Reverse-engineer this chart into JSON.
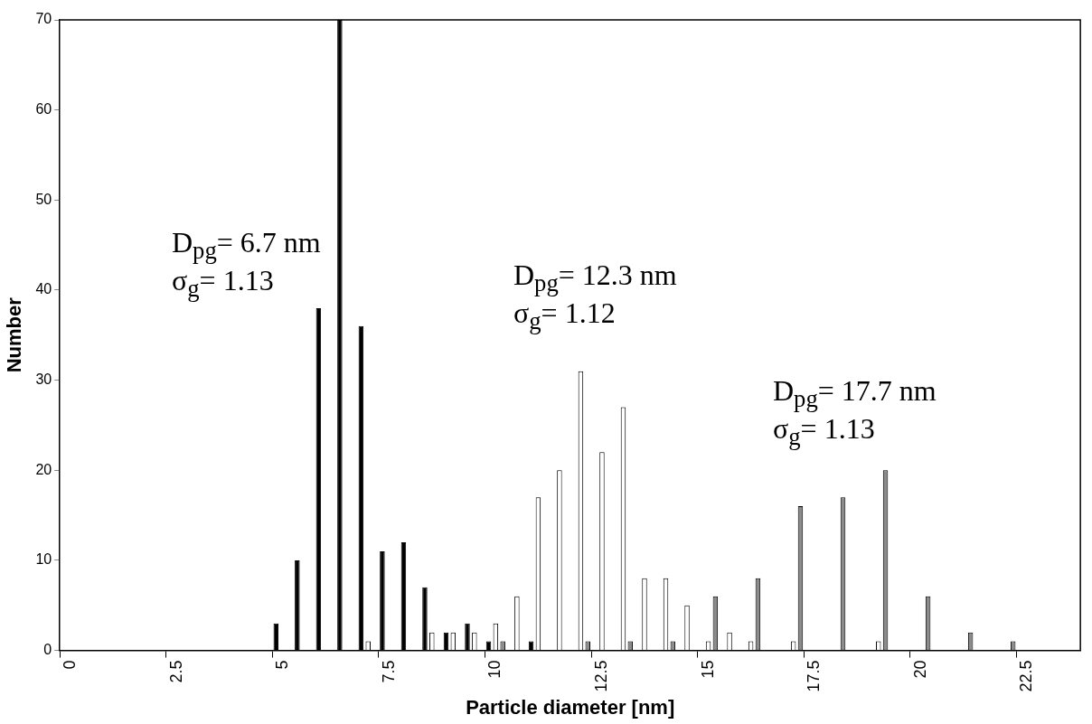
{
  "chart_data": {
    "type": "bar",
    "xlabel": "Particle diameter [nm]",
    "ylabel": "Number",
    "categories": [
      "0",
      null,
      null,
      null,
      null,
      "2.5",
      null,
      null,
      null,
      null,
      "5",
      null,
      null,
      null,
      null,
      "7.5",
      null,
      null,
      null,
      null,
      "10",
      null,
      null,
      null,
      null,
      "12.5",
      null,
      null,
      null,
      null,
      "15",
      null,
      null,
      null,
      null,
      "17.5",
      null,
      null,
      null,
      null,
      "20",
      null,
      null,
      null,
      null,
      "22.5",
      null,
      null
    ],
    "series": [
      {
        "color": "#000000",
        "values": [
          null,
          null,
          null,
          null,
          null,
          null,
          null,
          null,
          null,
          null,
          3,
          10,
          38,
          70,
          36,
          11,
          12,
          7,
          2,
          3,
          1,
          null,
          1,
          null,
          null,
          null,
          null,
          null,
          null,
          null,
          null,
          null,
          null,
          null,
          null,
          null,
          null,
          null,
          null,
          null,
          null,
          null,
          null,
          null,
          null,
          null,
          null,
          null
        ]
      },
      {
        "color": "#ffffff",
        "values": [
          null,
          null,
          null,
          null,
          null,
          null,
          null,
          null,
          null,
          null,
          null,
          null,
          null,
          null,
          1,
          null,
          null,
          2,
          2,
          2,
          3,
          6,
          17,
          20,
          31,
          22,
          27,
          8,
          8,
          5,
          1,
          2,
          1,
          null,
          1,
          null,
          null,
          null,
          1,
          null,
          null,
          null,
          null,
          null,
          null,
          null,
          null,
          null
        ]
      },
      {
        "color": "#8c8c8c",
        "values": [
          null,
          null,
          null,
          null,
          null,
          null,
          null,
          null,
          null,
          null,
          null,
          null,
          null,
          null,
          null,
          null,
          null,
          null,
          null,
          null,
          1,
          null,
          null,
          null,
          1,
          null,
          1,
          null,
          1,
          null,
          6,
          null,
          8,
          null,
          16,
          null,
          17,
          null,
          20,
          null,
          6,
          null,
          2,
          null,
          1,
          null,
          null,
          null
        ]
      }
    ],
    "ylim": [
      0,
      70
    ],
    "yticks": [
      0,
      10,
      20,
      30,
      40,
      50,
      60,
      70
    ],
    "grid": false,
    "legend": false,
    "annotations": [
      "D$_{pg}$= 6.7 nm",
      "σ$_{g}$= 1.13",
      "D$_{pg}$= 12.3 nm",
      "σ$_{g}$= 1.12",
      "D$_{pg}$= 17.7 nm",
      "σ$_{g}$= 1.13"
    ]
  }
}
